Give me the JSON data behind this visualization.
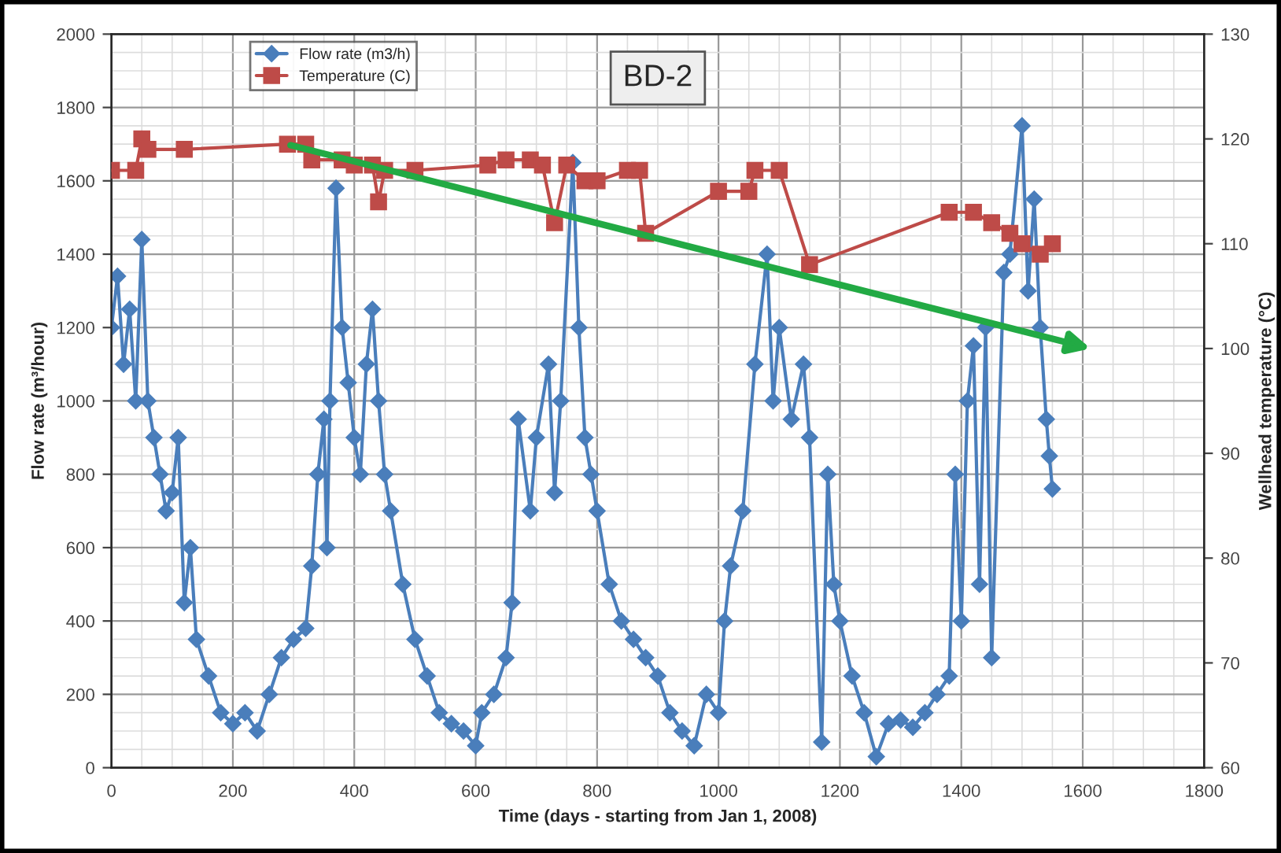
{
  "chart_data": {
    "type": "line",
    "title": "BD-2",
    "xlabel": "Time (days - starting from Jan 1, 2008)",
    "ylabel": "Flow rate (m³/hour)",
    "y2label": "Wellhead temperature (°C)",
    "xlim": [
      0,
      1800
    ],
    "xticks": [
      0,
      200,
      400,
      600,
      800,
      1000,
      1200,
      1400,
      1600,
      1800
    ],
    "ylim": [
      0,
      2000
    ],
    "yticks": [
      0,
      200,
      400,
      600,
      800,
      1000,
      1200,
      1400,
      1600,
      1800,
      2000
    ],
    "y2lim": [
      60,
      130
    ],
    "y2ticks": [
      60,
      70,
      80,
      90,
      100,
      110,
      120,
      130
    ],
    "grid": true,
    "legend": "top left",
    "line_style": "solid",
    "series": [
      {
        "name": "Flow rate (m3/h)",
        "color": "#4a7ebb",
        "marker": "diamond",
        "x": [
          0,
          10,
          20,
          30,
          40,
          50,
          60,
          70,
          80,
          90,
          100,
          110,
          120,
          130,
          140,
          160,
          180,
          200,
          220,
          240,
          260,
          280,
          300,
          320,
          330,
          340,
          350,
          355,
          360,
          370,
          380,
          390,
          400,
          410,
          420,
          430,
          440,
          450,
          460,
          480,
          500,
          520,
          540,
          560,
          580,
          600,
          610,
          630,
          650,
          660,
          670,
          690,
          700,
          720,
          730,
          740,
          760,
          770,
          780,
          790,
          800,
          820,
          840,
          860,
          880,
          900,
          920,
          940,
          960,
          980,
          1000,
          1010,
          1020,
          1040,
          1060,
          1080,
          1090,
          1100,
          1120,
          1140,
          1150,
          1170,
          1180,
          1190,
          1200,
          1220,
          1240,
          1260,
          1280,
          1300,
          1320,
          1340,
          1360,
          1380,
          1390,
          1400,
          1410,
          1420,
          1430,
          1440,
          1450,
          1470,
          1480,
          1500,
          1510,
          1520,
          1530,
          1540,
          1545,
          1550
        ],
        "values": [
          1200,
          1340,
          1100,
          1250,
          1000,
          1440,
          1000,
          900,
          800,
          700,
          750,
          900,
          450,
          600,
          350,
          250,
          150,
          120,
          150,
          100,
          200,
          300,
          350,
          380,
          550,
          800,
          950,
          600,
          1000,
          1580,
          1200,
          1050,
          900,
          800,
          1100,
          1250,
          1000,
          800,
          700,
          500,
          350,
          250,
          150,
          120,
          100,
          60,
          150,
          200,
          300,
          450,
          950,
          700,
          900,
          1100,
          750,
          1000,
          1650,
          1200,
          900,
          800,
          700,
          500,
          400,
          350,
          300,
          250,
          150,
          100,
          60,
          200,
          150,
          400,
          550,
          700,
          1100,
          1400,
          1000,
          1200,
          950,
          1100,
          900,
          70,
          800,
          500,
          400,
          250,
          150,
          30,
          120,
          130,
          110,
          150,
          200,
          250,
          800,
          400,
          1000,
          1150,
          500,
          1200,
          300,
          1350,
          1400,
          1750,
          1300,
          1550,
          1200,
          950,
          850,
          760
        ]
      },
      {
        "name": "Temperature (C)",
        "color": "#be4b48",
        "marker": "square",
        "axis": "y2",
        "x": [
          0,
          40,
          50,
          60,
          120,
          290,
          320,
          330,
          380,
          400,
          430,
          440,
          450,
          500,
          620,
          650,
          690,
          710,
          730,
          750,
          780,
          800,
          850,
          870,
          880,
          1000,
          1050,
          1060,
          1100,
          1150,
          1380,
          1420,
          1450,
          1480,
          1500,
          1530,
          1550
        ],
        "values": [
          117,
          117,
          120,
          119,
          119,
          119.5,
          119.5,
          118,
          118,
          117.5,
          117.5,
          114,
          117,
          117,
          117.5,
          118,
          118,
          117.5,
          112,
          117.5,
          116,
          116,
          117,
          117,
          111,
          115,
          115,
          117,
          117,
          108,
          113,
          113,
          112,
          111,
          110,
          109,
          110
        ]
      }
    ]
  }
}
